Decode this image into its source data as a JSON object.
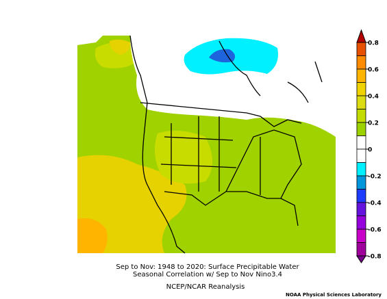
{
  "title": [
    "Sep to Nov: 1948 to 2020: Surface Precipitable Water",
    "Seasonal Correlation w/ Sep to Nov Nino3.4"
  ],
  "source": "NCEP/NCAR Reanalysis",
  "credit": "NOAA Physical Sciences Laboratory",
  "colorbar": {
    "ticks": [
      0.8,
      0.6,
      0.4,
      0.2,
      0,
      -0.2,
      -0.4,
      -0.6,
      -0.8
    ],
    "colors": [
      "#e65000",
      "#ff8c00",
      "#ffb400",
      "#f0d200",
      "#dcdc14",
      "#c3dc00",
      "#9bd200",
      "#ffffff",
      "#ffffff",
      "#00f0ff",
      "#0096dc",
      "#1e3cff",
      "#6414dc",
      "#9600dc",
      "#c800c8",
      "#a0009b"
    ],
    "over": "#b40000",
    "under": "#78008c"
  }
}
